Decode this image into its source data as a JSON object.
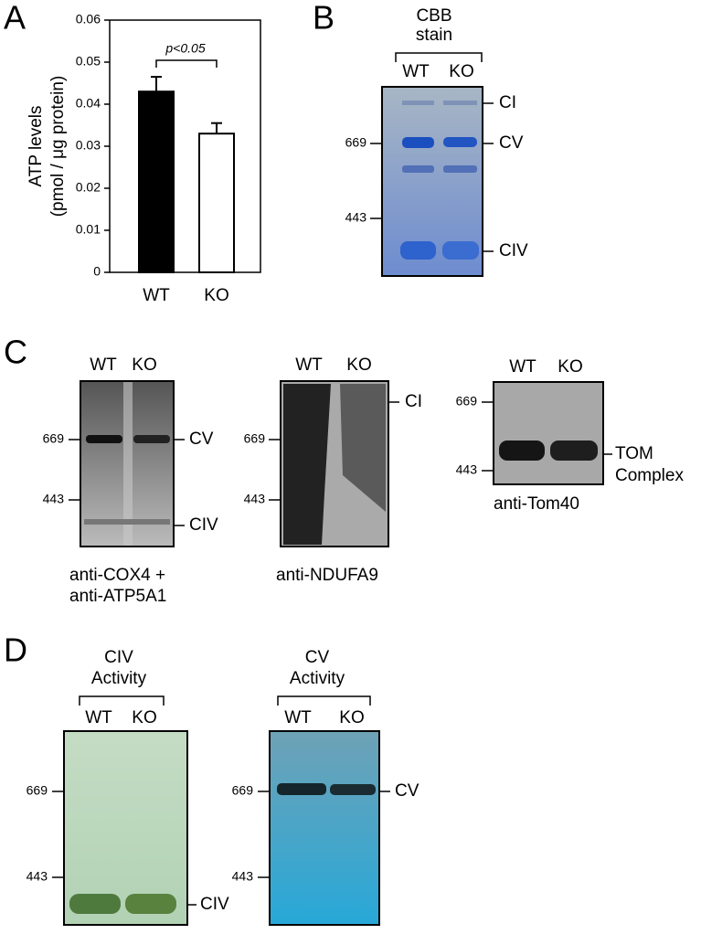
{
  "panel_labels": [
    "A",
    "B",
    "C",
    "D"
  ],
  "chart_data": {
    "type": "bar",
    "y_label": [
      "ATP levels",
      "(pmol / μg protein)"
    ],
    "categories": [
      "WT",
      "KO"
    ],
    "values": [
      0.043,
      0.033
    ],
    "errors": [
      0.0035,
      0.0025
    ],
    "colors": [
      "#000000",
      "#ffffff"
    ],
    "annotation": "p<0.05",
    "ylim": [
      0,
      0.06
    ],
    "yticks": [
      0,
      0.01,
      0.02,
      0.03,
      0.04,
      0.05,
      0.06
    ]
  },
  "gels": [
    {
      "header": [
        "CBB",
        "stain"
      ],
      "lanes": [
        "WT",
        "KO"
      ],
      "markers": [
        "669",
        "443"
      ],
      "bands": [
        "CI",
        "CV",
        "CIV"
      ]
    },
    {
      "lanes": [
        "WT",
        "KO"
      ],
      "markers": [
        "669",
        "443"
      ],
      "bands": [
        "CV",
        "CIV"
      ],
      "caption": [
        "anti-COX4 +",
        "anti-ATP5A1"
      ]
    },
    {
      "lanes": [
        "WT",
        "KO"
      ],
      "markers": [
        "669",
        "443"
      ],
      "bands": [
        "CI"
      ],
      "caption": [
        "anti-NDUFA9"
      ]
    },
    {
      "lanes": [
        "WT",
        "KO"
      ],
      "markers": [
        "669",
        "443"
      ],
      "bands": [
        "TOM",
        "Complex"
      ],
      "caption": [
        "anti-Tom40"
      ]
    },
    {
      "header": [
        "CIV",
        "Activity"
      ],
      "lanes": [
        "WT",
        "KO"
      ],
      "markers": [
        "669",
        "443"
      ],
      "bands": [
        "CIV"
      ]
    },
    {
      "header": [
        "CV",
        "Activity"
      ],
      "lanes": [
        "WT",
        "KO"
      ],
      "markers": [
        "669",
        "443"
      ],
      "bands": [
        "CV"
      ]
    }
  ]
}
